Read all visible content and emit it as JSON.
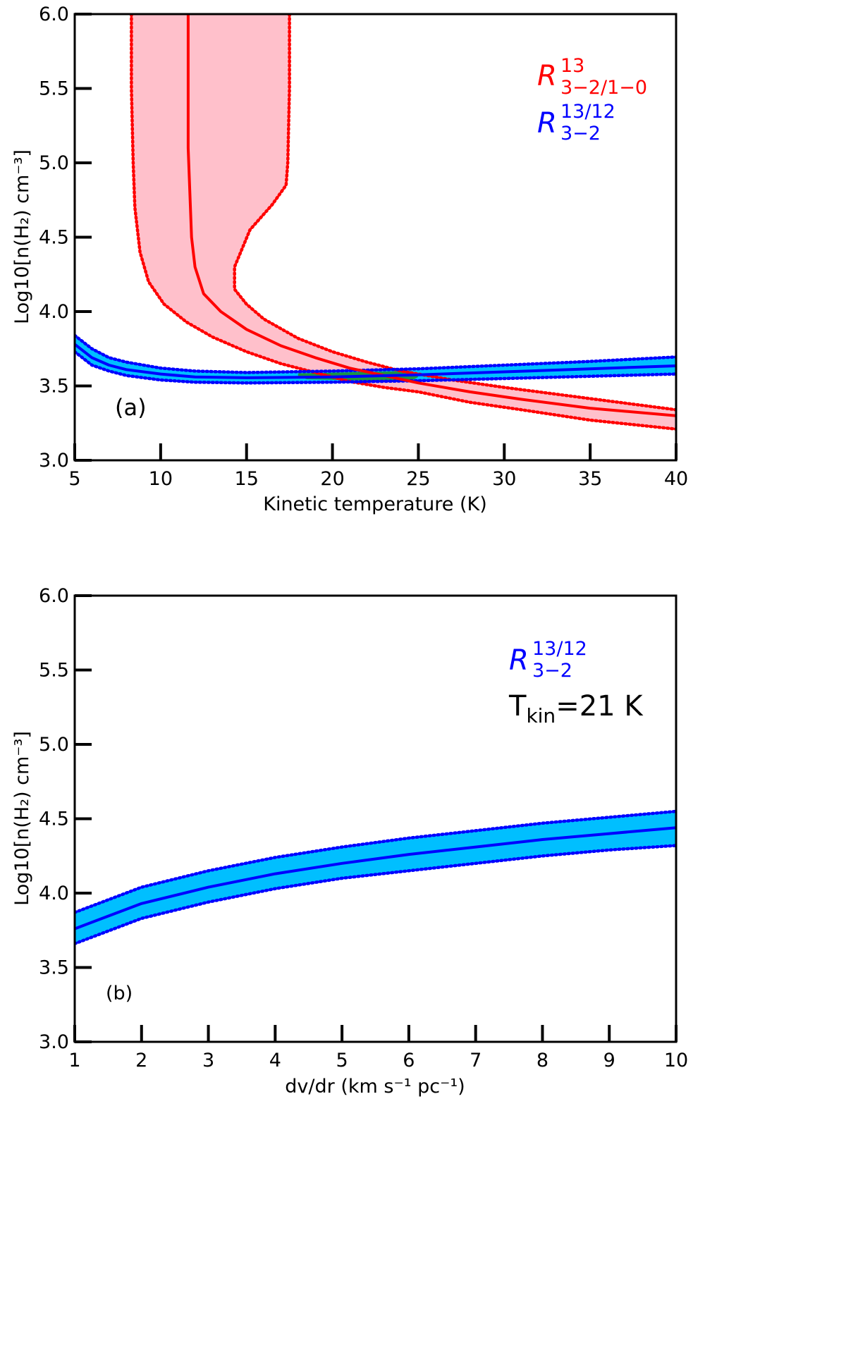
{
  "chart_data": [
    {
      "panel": "a",
      "type": "line",
      "panel_label": "(a)",
      "xlabel": "Kinetic temperature (K)",
      "ylabel": "Log10[n(H₂) cm⁻³]",
      "xlim": [
        5,
        40
      ],
      "ylim": [
        3.0,
        6.0
      ],
      "xticks": [
        5,
        10,
        15,
        20,
        25,
        30,
        35,
        40
      ],
      "yticks": [
        3.0,
        3.5,
        4.0,
        4.5,
        5.0,
        5.5,
        6.0
      ],
      "tick_labels_x": [
        "5",
        "10",
        "15",
        "20",
        "25",
        "30",
        "35",
        "40"
      ],
      "tick_labels_y": [
        "3.0",
        "3.5",
        "4.0",
        "4.5",
        "5.0",
        "5.5",
        "6.0"
      ],
      "legend": [
        {
          "base": "R",
          "sup": "13",
          "sub": "3−2/1−0",
          "color": "#ff0000"
        },
        {
          "base": "R",
          "sup": "13/12",
          "sub": "3−2",
          "color": "#0000ff"
        }
      ],
      "colors": {
        "red_line": "#ff0000",
        "red_band": "#ffc0cb",
        "blue_line": "#0000ff",
        "blue_band": "#00bfff",
        "overlap": "#228b22"
      },
      "series": [
        {
          "name": "R13 3-2/1-0",
          "role": "line",
          "color": "#ff0000",
          "points": [
            [
              11.6,
              6.0
            ],
            [
              11.6,
              5.5
            ],
            [
              11.6,
              5.1
            ],
            [
              11.7,
              4.8
            ],
            [
              11.8,
              4.5
            ],
            [
              12.0,
              4.3
            ],
            [
              12.5,
              4.12
            ],
            [
              13.5,
              4.0
            ],
            [
              15,
              3.88
            ],
            [
              17,
              3.77
            ],
            [
              19,
              3.69
            ],
            [
              21,
              3.62
            ],
            [
              23,
              3.57
            ],
            [
              25,
              3.52
            ],
            [
              28,
              3.46
            ],
            [
              31,
              3.41
            ],
            [
              35,
              3.35
            ],
            [
              40,
              3.3
            ]
          ]
        },
        {
          "name": "R13 3-2/1-0 lower bound",
          "role": "band-edge",
          "color": "#ff0000",
          "points": [
            [
              8.3,
              6.0
            ],
            [
              8.3,
              5.5
            ],
            [
              8.4,
              5.0
            ],
            [
              8.5,
              4.7
            ],
            [
              8.8,
              4.4
            ],
            [
              9.3,
              4.2
            ],
            [
              10.2,
              4.05
            ],
            [
              11.5,
              3.93
            ],
            [
              13,
              3.83
            ],
            [
              15,
              3.73
            ],
            [
              17,
              3.65
            ],
            [
              19,
              3.59
            ],
            [
              21,
              3.53
            ],
            [
              23,
              3.49
            ],
            [
              25,
              3.46
            ],
            [
              28,
              3.39
            ],
            [
              31,
              3.34
            ],
            [
              35,
              3.27
            ],
            [
              40,
              3.21
            ]
          ]
        },
        {
          "name": "R13 3-2/1-0 upper bound",
          "role": "band-edge",
          "color": "#ff0000",
          "points": [
            [
              17.5,
              6.0
            ],
            [
              17.5,
              5.5
            ],
            [
              17.4,
              5.0
            ],
            [
              17.3,
              4.85
            ],
            [
              16.5,
              4.72
            ],
            [
              15.2,
              4.55
            ],
            [
              14.3,
              4.3
            ],
            [
              14.3,
              4.15
            ],
            [
              15,
              4.05
            ],
            [
              16,
              3.95
            ],
            [
              18,
              3.82
            ],
            [
              20,
              3.73
            ],
            [
              22,
              3.66
            ],
            [
              24,
              3.6
            ],
            [
              27,
              3.54
            ],
            [
              30,
              3.49
            ],
            [
              34,
              3.43
            ],
            [
              40,
              3.34
            ]
          ]
        },
        {
          "name": "R13/12 3-2",
          "role": "line",
          "color": "#0000ff",
          "points": [
            [
              5,
              3.78
            ],
            [
              6,
              3.69
            ],
            [
              7,
              3.64
            ],
            [
              8,
              3.61
            ],
            [
              10,
              3.58
            ],
            [
              12,
              3.56
            ],
            [
              15,
              3.555
            ],
            [
              20,
              3.56
            ],
            [
              25,
              3.575
            ],
            [
              30,
              3.595
            ],
            [
              35,
              3.615
            ],
            [
              40,
              3.635
            ]
          ]
        },
        {
          "name": "R13/12 3-2 lower bound",
          "role": "band-edge",
          "color": "#0000ff",
          "points": [
            [
              5,
              3.73
            ],
            [
              6,
              3.64
            ],
            [
              7,
              3.6
            ],
            [
              8,
              3.57
            ],
            [
              10,
              3.54
            ],
            [
              12,
              3.525
            ],
            [
              15,
              3.52
            ],
            [
              20,
              3.525
            ],
            [
              25,
              3.535
            ],
            [
              30,
              3.55
            ],
            [
              35,
              3.565
            ],
            [
              40,
              3.58
            ]
          ]
        },
        {
          "name": "R13/12 3-2 upper bound",
          "role": "band-edge",
          "color": "#0000ff",
          "points": [
            [
              5,
              3.84
            ],
            [
              6,
              3.75
            ],
            [
              7,
              3.69
            ],
            [
              8,
              3.66
            ],
            [
              10,
              3.62
            ],
            [
              12,
              3.6
            ],
            [
              15,
              3.59
            ],
            [
              20,
              3.6
            ],
            [
              25,
              3.615
            ],
            [
              30,
              3.64
            ],
            [
              35,
              3.665
            ],
            [
              40,
              3.695
            ]
          ]
        },
        {
          "name": "overlap region",
          "role": "region",
          "color": "#228b22",
          "points": [
            [
              18.0,
              3.585
            ],
            [
              24.5,
              3.6
            ],
            [
              25.0,
              3.56
            ],
            [
              24.5,
              3.53
            ],
            [
              18.5,
              3.545
            ],
            [
              18.0,
              3.565
            ]
          ]
        }
      ]
    },
    {
      "panel": "b",
      "type": "line",
      "panel_label": "(b)",
      "xlabel": "dv/dr (km s⁻¹ pc⁻¹)",
      "ylabel": "Log10[n(H₂) cm⁻³]",
      "xlim": [
        1,
        10
      ],
      "ylim": [
        3.0,
        6.0
      ],
      "xticks": [
        1,
        2,
        3,
        4,
        5,
        6,
        7,
        8,
        9,
        10
      ],
      "yticks": [
        3.0,
        3.5,
        4.0,
        4.5,
        5.0,
        5.5,
        6.0
      ],
      "tick_labels_x": [
        "1",
        "2",
        "3",
        "4",
        "5",
        "6",
        "7",
        "8",
        "9",
        "10"
      ],
      "tick_labels_y": [
        "3.0",
        "3.5",
        "4.0",
        "4.5",
        "5.0",
        "5.5",
        "6.0"
      ],
      "legend": [
        {
          "base": "R",
          "sup": "13/12",
          "sub": "3−2",
          "color": "#0000ff"
        }
      ],
      "annotation": {
        "base": "T",
        "sub": "kin",
        "rest": "=21 K"
      },
      "colors": {
        "blue_line": "#0000ff",
        "blue_band": "#00bfff"
      },
      "series": [
        {
          "name": "R13/12 3-2",
          "role": "line",
          "color": "#0000ff",
          "points": [
            [
              1,
              3.76
            ],
            [
              2,
              3.93
            ],
            [
              3,
              4.04
            ],
            [
              4,
              4.13
            ],
            [
              5,
              4.2
            ],
            [
              6,
              4.26
            ],
            [
              7,
              4.31
            ],
            [
              8,
              4.36
            ],
            [
              9,
              4.4
            ],
            [
              10,
              4.44
            ]
          ]
        },
        {
          "name": "R13/12 3-2 lower bound",
          "role": "band-edge",
          "color": "#0000ff",
          "points": [
            [
              1,
              3.66
            ],
            [
              2,
              3.83
            ],
            [
              3,
              3.94
            ],
            [
              4,
              4.03
            ],
            [
              5,
              4.1
            ],
            [
              6,
              4.15
            ],
            [
              7,
              4.2
            ],
            [
              8,
              4.25
            ],
            [
              9,
              4.29
            ],
            [
              10,
              4.32
            ]
          ]
        },
        {
          "name": "R13/12 3-2 upper bound",
          "role": "band-edge",
          "color": "#0000ff",
          "points": [
            [
              1,
              3.87
            ],
            [
              2,
              4.04
            ],
            [
              3,
              4.15
            ],
            [
              4,
              4.24
            ],
            [
              5,
              4.31
            ],
            [
              6,
              4.37
            ],
            [
              7,
              4.42
            ],
            [
              8,
              4.47
            ],
            [
              9,
              4.51
            ],
            [
              10,
              4.55
            ]
          ]
        }
      ]
    }
  ]
}
